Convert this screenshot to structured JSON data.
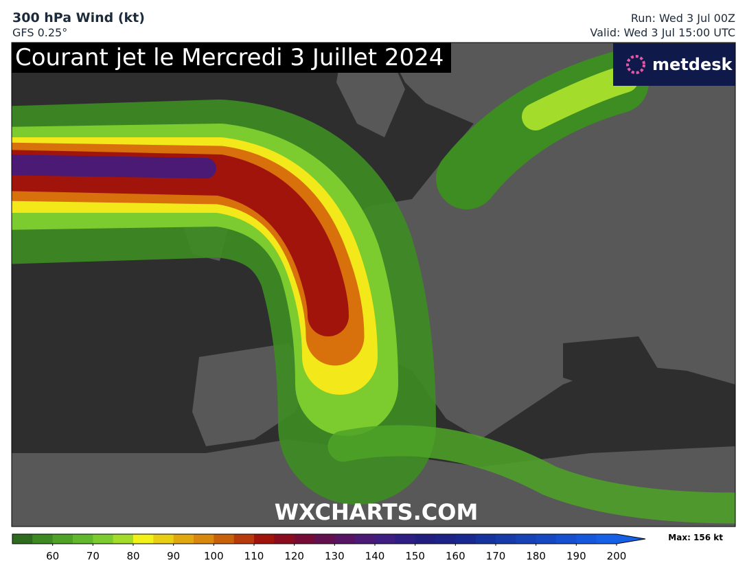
{
  "header": {
    "title": "300 hPa Wind (kt)",
    "model": "GFS 0.25°",
    "run": "Run: Wed 3 Jul 00Z",
    "valid": "Valid: Wed 3 Jul 15:00 UTC"
  },
  "map": {
    "overlay_title": "Courant jet le Mercredi 3 Juillet 2024",
    "logo": "metdesk",
    "watermark": "WXCHARTS.COM"
  },
  "colorbar": {
    "lim": [
      50,
      200
    ],
    "ticks": [
      60,
      70,
      80,
      90,
      100,
      110,
      120,
      130,
      140,
      150,
      160,
      170,
      180,
      190,
      200
    ],
    "colors": [
      "#2f6b1e",
      "#3d8a22",
      "#4ea327",
      "#62b82c",
      "#7ccc30",
      "#a4dc2c",
      "#f2f21a",
      "#e8cf14",
      "#e0a80e",
      "#d8880c",
      "#c8620a",
      "#b63a0a",
      "#a0140c",
      "#8a0c1e",
      "#760c36",
      "#62104e",
      "#561462",
      "#4a1a74",
      "#3e1e80",
      "#2e1e84",
      "#221e80",
      "#1c2286",
      "#182a90",
      "#16329c",
      "#163aa8",
      "#1642b6",
      "#1648c2",
      "#1650d0",
      "#1658dc",
      "#1660e6"
    ],
    "max": "Max: 156 kt"
  }
}
